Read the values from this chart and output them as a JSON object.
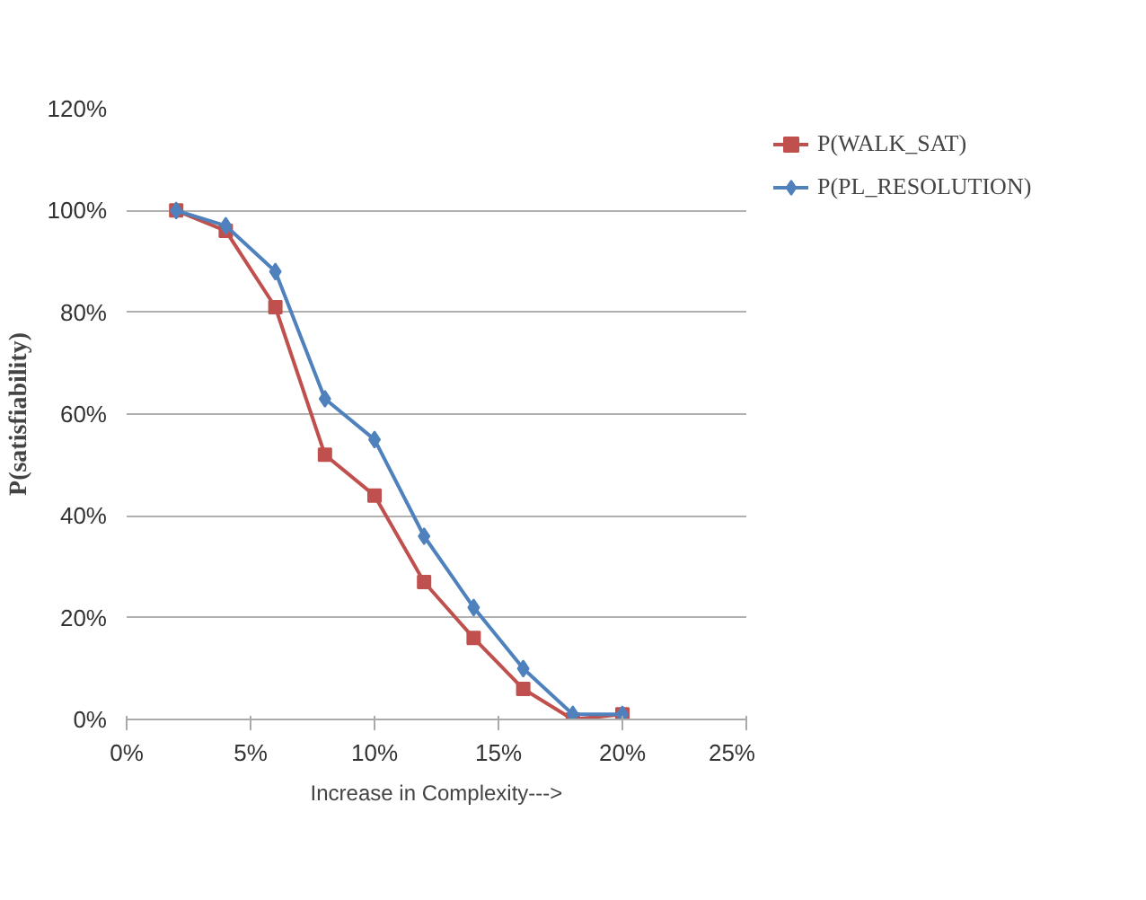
{
  "chart_data": {
    "type": "line",
    "xlabel": "Increase in Complexity--->",
    "ylabel": "P(satisfiability)",
    "x": [
      2,
      4,
      6,
      8,
      10,
      12,
      14,
      16,
      18,
      20
    ],
    "series": [
      {
        "name": "P(WALK_SAT)",
        "color": "#c0504d",
        "marker": "square",
        "values": [
          100,
          96,
          81,
          52,
          44,
          27,
          16,
          6,
          0,
          1
        ]
      },
      {
        "name": "P(PL_RESOLUTION)",
        "color": "#4f81bd",
        "marker": "diamond",
        "values": [
          100,
          97,
          88,
          63,
          55,
          36,
          22,
          10,
          1,
          1
        ]
      }
    ],
    "xlim": [
      0,
      25
    ],
    "xticks": [
      {
        "value": 0,
        "label": "0%"
      },
      {
        "value": 5,
        "label": "5%"
      },
      {
        "value": 10,
        "label": "10%"
      },
      {
        "value": 15,
        "label": "15%"
      },
      {
        "value": 20,
        "label": "20%"
      },
      {
        "value": 25,
        "label": "25%"
      }
    ],
    "ylim": [
      0,
      120
    ],
    "yticks": [
      {
        "value": 0,
        "label": "0%"
      },
      {
        "value": 20,
        "label": "20%"
      },
      {
        "value": 40,
        "label": "40%"
      },
      {
        "value": 60,
        "label": "60%"
      },
      {
        "value": 80,
        "label": "80%"
      },
      {
        "value": 100,
        "label": "100%"
      },
      {
        "value": 120,
        "label": "120%"
      }
    ],
    "grid": "y",
    "legend": "top right",
    "line_style": "solid"
  }
}
